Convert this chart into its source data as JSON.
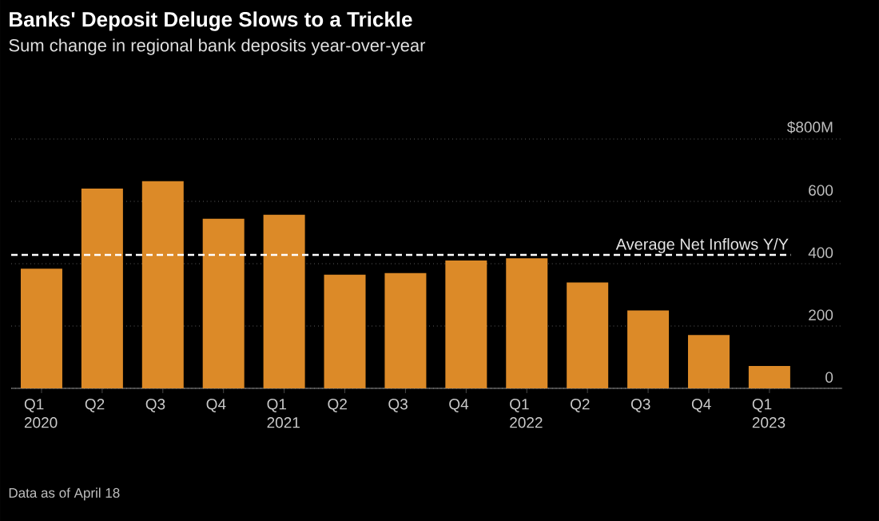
{
  "chart_data": {
    "type": "bar",
    "title": "Banks' Deposit Deluge Slows to a Trickle",
    "subtitle": "Sum change in regional bank deposits year-over-year",
    "categories": [
      "Q1 2020",
      "Q2",
      "Q3",
      "Q4",
      "Q1 2021",
      "Q2",
      "Q3",
      "Q4",
      "Q1 2022",
      "Q2",
      "Q3",
      "Q4",
      "Q1 2023"
    ],
    "values": [
      384,
      641,
      665,
      544,
      557,
      365,
      370,
      410,
      417,
      340,
      250,
      171,
      72
    ],
    "color": "#dc8a28",
    "ylim": [
      0,
      800
    ],
    "yticks": [
      0,
      200,
      400,
      600,
      {
        "value": 800,
        "label": "$800M"
      }
    ],
    "grid": "y",
    "ref_lines": [
      {
        "axis": "y",
        "value": 428,
        "label": "Average Net Inflows Y/Y",
        "color": "#ffffff",
        "line_style": "dashed"
      }
    ],
    "annotations": [
      "Data as of April 18"
    ]
  }
}
